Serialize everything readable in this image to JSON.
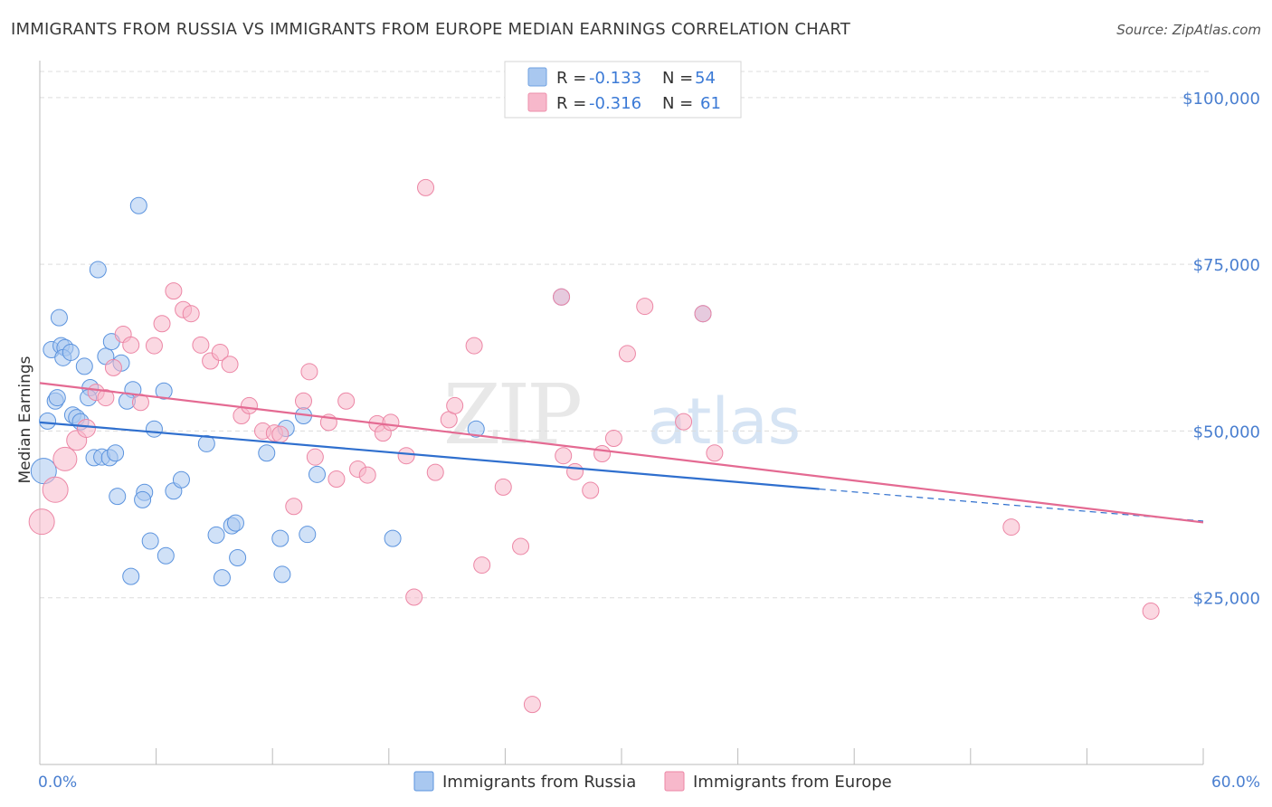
{
  "title": "IMMIGRANTS FROM RUSSIA VS IMMIGRANTS FROM EUROPE MEDIAN EARNINGS CORRELATION CHART",
  "source": "Source: ZipAtlas.com",
  "watermark": {
    "zip": "ZIP",
    "atlas": "atlas"
  },
  "legend": {
    "r_label": "R =",
    "n_label": "N =",
    "rows": [
      {
        "r": "-0.133",
        "n": "54",
        "color": "#a9c8f0",
        "stroke": "#6fa0e0"
      },
      {
        "r": "-0.316",
        "n": "61",
        "color": "#f7b8cb",
        "stroke": "#ee8fab"
      }
    ]
  },
  "chart_data": {
    "type": "scatter",
    "title": "IMMIGRANTS FROM RUSSIA VS IMMIGRANTS FROM EUROPE MEDIAN EARNINGS CORRELATION CHART",
    "xlabel": "",
    "ylabel": "Median Earnings",
    "xlim": [
      0,
      60
    ],
    "ylim": [
      0,
      105000
    ],
    "x_tick_labels": [
      "0.0%",
      "60.0%"
    ],
    "y_ticks": [
      25000,
      50000,
      75000,
      100000
    ],
    "y_tick_labels": [
      "$25,000",
      "$50,000",
      "$75,000",
      "$100,000"
    ],
    "grid": true,
    "legend_position": "top-center",
    "series": [
      {
        "name": "Immigrants from Russia",
        "color": "#a9c8f0",
        "stroke": "#5b93de",
        "line_color": "#2f6fce",
        "trend": {
          "x0": 0,
          "y0": 51300,
          "x1": 40.2,
          "y1": 41300,
          "dash_to_x": 60,
          "dash_to_y": 36500
        },
        "points": [
          [
            0.2,
            44000,
            14
          ],
          [
            0.4,
            51500,
            9
          ],
          [
            0.8,
            54500,
            9
          ],
          [
            0.6,
            62200,
            9
          ],
          [
            1.0,
            67000,
            9
          ],
          [
            1.1,
            62800,
            9
          ],
          [
            1.3,
            62500,
            9
          ],
          [
            1.2,
            61000,
            9
          ],
          [
            1.6,
            61800,
            9
          ],
          [
            0.9,
            55000,
            9
          ],
          [
            1.7,
            52400,
            9
          ],
          [
            1.9,
            52000,
            9
          ],
          [
            2.1,
            51400,
            9
          ],
          [
            2.6,
            56500,
            9
          ],
          [
            2.5,
            55000,
            9
          ],
          [
            2.3,
            59700,
            9
          ],
          [
            3.4,
            61200,
            9
          ],
          [
            3.7,
            63400,
            9
          ],
          [
            4.2,
            60200,
            9
          ],
          [
            3.0,
            74200,
            9
          ],
          [
            5.1,
            83800,
            9
          ],
          [
            4.8,
            56200,
            9
          ],
          [
            4.5,
            54500,
            9
          ],
          [
            5.9,
            50300,
            9
          ],
          [
            6.4,
            56000,
            9
          ],
          [
            2.8,
            46000,
            9
          ],
          [
            3.2,
            46100,
            9
          ],
          [
            3.6,
            46000,
            9
          ],
          [
            3.9,
            46700,
            9
          ],
          [
            4.0,
            40200,
            9
          ],
          [
            5.4,
            40800,
            9
          ],
          [
            5.3,
            39700,
            9
          ],
          [
            6.9,
            41000,
            9
          ],
          [
            7.3,
            42700,
            9
          ],
          [
            8.6,
            48100,
            9
          ],
          [
            11.7,
            46700,
            9
          ],
          [
            12.7,
            50400,
            9
          ],
          [
            13.6,
            52300,
            9
          ],
          [
            14.3,
            43500,
            9
          ],
          [
            22.5,
            50300,
            9
          ],
          [
            9.1,
            34400,
            9
          ],
          [
            9.9,
            35800,
            9
          ],
          [
            10.1,
            36200,
            9
          ],
          [
            12.4,
            33900,
            9
          ],
          [
            13.8,
            34500,
            9
          ],
          [
            18.2,
            33900,
            9
          ],
          [
            5.7,
            33500,
            9
          ],
          [
            6.5,
            31300,
            9
          ],
          [
            10.2,
            31000,
            9
          ],
          [
            4.7,
            28200,
            9
          ],
          [
            9.4,
            28000,
            9
          ],
          [
            12.5,
            28500,
            9
          ],
          [
            26.9,
            70100,
            9
          ],
          [
            34.2,
            67600,
            9
          ]
        ]
      },
      {
        "name": "Immigrants from Europe",
        "color": "#f7b8cb",
        "stroke": "#ec86a5",
        "line_color": "#e46a92",
        "trend": {
          "x0": 0,
          "y0": 57200,
          "x1": 60,
          "y1": 36300
        },
        "points": [
          [
            0.1,
            36400,
            14
          ],
          [
            0.8,
            41200,
            14
          ],
          [
            1.3,
            45800,
            13
          ],
          [
            1.9,
            48600,
            11
          ],
          [
            2.4,
            50400,
            10
          ],
          [
            2.9,
            55800,
            9
          ],
          [
            3.4,
            55000,
            9
          ],
          [
            3.8,
            59500,
            9
          ],
          [
            4.3,
            64500,
            9
          ],
          [
            4.7,
            62900,
            9
          ],
          [
            5.2,
            54300,
            9
          ],
          [
            5.9,
            62800,
            9
          ],
          [
            6.3,
            66100,
            9
          ],
          [
            6.9,
            71000,
            9
          ],
          [
            7.4,
            68200,
            9
          ],
          [
            7.8,
            67600,
            9
          ],
          [
            8.3,
            62900,
            9
          ],
          [
            8.8,
            60500,
            9
          ],
          [
            9.3,
            61800,
            9
          ],
          [
            9.8,
            60000,
            9
          ],
          [
            10.4,
            52300,
            9
          ],
          [
            10.8,
            53800,
            9
          ],
          [
            11.5,
            50000,
            9
          ],
          [
            12.1,
            49700,
            9
          ],
          [
            12.4,
            49500,
            9
          ],
          [
            13.1,
            38700,
            9
          ],
          [
            13.6,
            54500,
            9
          ],
          [
            13.9,
            58900,
            9
          ],
          [
            14.2,
            46100,
            9
          ],
          [
            14.9,
            51300,
            9
          ],
          [
            15.3,
            42800,
            9
          ],
          [
            15.8,
            54500,
            9
          ],
          [
            16.4,
            44300,
            9
          ],
          [
            16.9,
            43400,
            9
          ],
          [
            17.4,
            51100,
            9
          ],
          [
            17.7,
            49700,
            9
          ],
          [
            18.1,
            51300,
            9
          ],
          [
            18.9,
            46300,
            9
          ],
          [
            19.3,
            25100,
            9
          ],
          [
            19.9,
            86500,
            9
          ],
          [
            20.4,
            43800,
            9
          ],
          [
            21.1,
            51700,
            9
          ],
          [
            21.4,
            53800,
            9
          ],
          [
            22.4,
            62800,
            9
          ],
          [
            22.8,
            29900,
            9
          ],
          [
            23.9,
            41600,
            9
          ],
          [
            24.8,
            32700,
            9
          ],
          [
            25.4,
            9000,
            9
          ],
          [
            26.9,
            70100,
            9
          ],
          [
            27.0,
            46300,
            9
          ],
          [
            27.6,
            43900,
            9
          ],
          [
            28.4,
            41100,
            9
          ],
          [
            29.0,
            46600,
            9
          ],
          [
            29.6,
            48900,
            9
          ],
          [
            30.3,
            61600,
            9
          ],
          [
            31.2,
            68700,
            9
          ],
          [
            33.2,
            51400,
            9
          ],
          [
            34.2,
            67600,
            9
          ],
          [
            34.8,
            46700,
            9
          ],
          [
            50.1,
            35600,
            9
          ],
          [
            57.3,
            23000,
            9
          ]
        ]
      }
    ]
  }
}
